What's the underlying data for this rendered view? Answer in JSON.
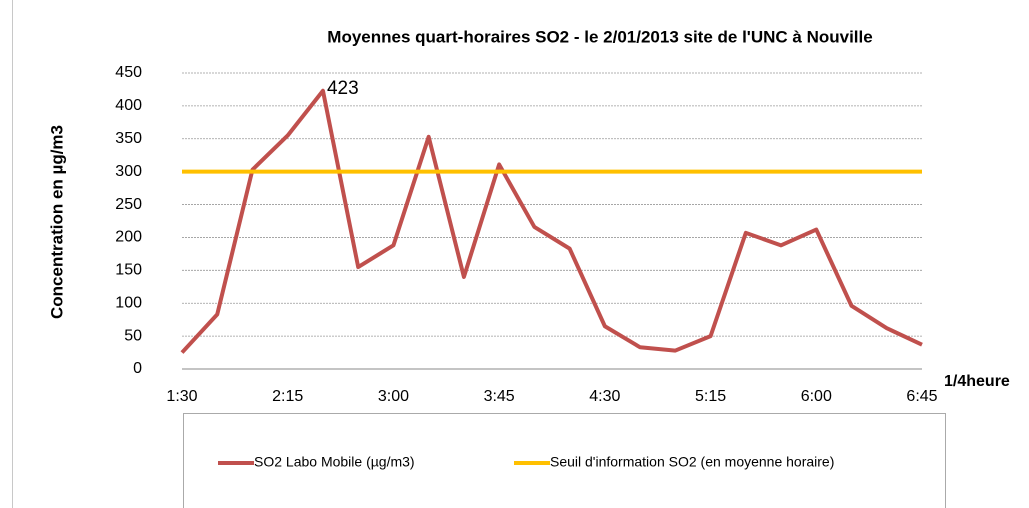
{
  "chart_data": {
    "type": "line",
    "title": "Moyennes quart-horaires SO2  -  le 2/01/2013 site de l'UNC à Nouville",
    "x_label": "1/4heure",
    "y_label": "Concentration en µg/m3",
    "categories": [
      "1:30",
      null,
      null,
      "2:15",
      null,
      null,
      "3:00",
      null,
      null,
      "3:45",
      null,
      null,
      "4:30",
      null,
      null,
      "5:15",
      null,
      null,
      "6:00",
      null,
      null,
      "6:45"
    ],
    "series": [
      {
        "name": "SO2 Labo Mobile (µg/m3)",
        "color": "#c0504d",
        "values": [
          25,
          83,
          303,
          355,
          423,
          155,
          188,
          353,
          140,
          311,
          216,
          183,
          65,
          33,
          28,
          50,
          207,
          188,
          212,
          96,
          62,
          37
        ]
      },
      {
        "name": "Seuil d'information SO2 (en moyenne horaire)",
        "color": "#ffc000",
        "values": [
          300,
          300,
          300,
          300,
          300,
          300,
          300,
          300,
          300,
          300,
          300,
          300,
          300,
          300,
          300,
          300,
          300,
          300,
          300,
          300,
          300,
          300
        ]
      }
    ],
    "data_label_color": "#e00000",
    "ylim": [
      0,
      450
    ],
    "yticks": [
      0,
      50,
      100,
      150,
      200,
      250,
      300,
      350,
      400,
      450
    ],
    "grid": true,
    "legend": "bottom"
  }
}
